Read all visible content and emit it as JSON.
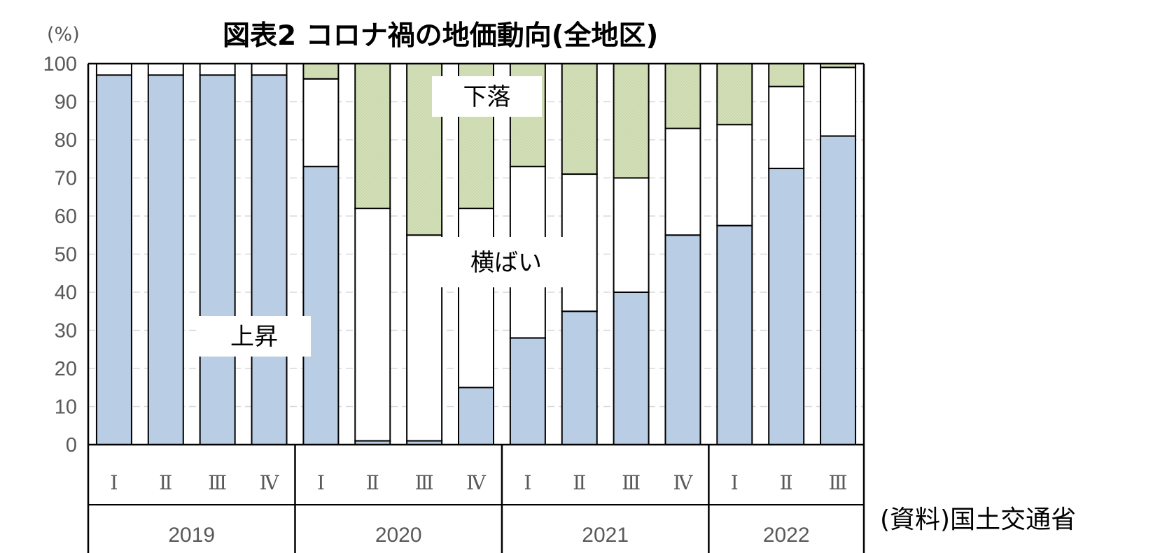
{
  "chart_data": {
    "type": "bar",
    "stacked": true,
    "title": "図表2 コロナ禍の地価動向(全地区)",
    "y_unit": "(%)",
    "ylim": [
      0,
      100
    ],
    "yticks": [
      0,
      10,
      20,
      30,
      40,
      50,
      60,
      70,
      80,
      90,
      100
    ],
    "grid": true,
    "categories": [
      "Ⅰ",
      "Ⅱ",
      "Ⅲ",
      "Ⅳ",
      "Ⅰ",
      "Ⅱ",
      "Ⅲ",
      "Ⅳ",
      "Ⅰ",
      "Ⅱ",
      "Ⅲ",
      "Ⅳ",
      "Ⅰ",
      "Ⅱ",
      "Ⅲ"
    ],
    "year_groups": [
      {
        "label": "2019",
        "count": 4
      },
      {
        "label": "2020",
        "count": 4
      },
      {
        "label": "2021",
        "count": 4
      },
      {
        "label": "2022",
        "count": 3
      }
    ],
    "series": [
      {
        "name": "上昇",
        "color": "#b9cde4",
        "values": [
          97,
          97,
          97,
          97,
          73,
          1,
          1,
          15,
          28,
          35,
          40,
          55,
          57.5,
          72.5,
          81
        ]
      },
      {
        "name": "横ばい",
        "color": "#ffffff",
        "values": [
          3,
          3,
          3,
          3,
          23,
          61,
          54,
          47,
          45,
          36,
          30,
          28,
          26.5,
          21.5,
          18
        ]
      },
      {
        "name": "下落",
        "color": "#d4e0b8",
        "values": [
          0,
          0,
          0,
          0,
          4,
          38,
          45,
          38,
          27,
          29,
          30,
          17,
          16,
          6,
          1
        ]
      }
    ],
    "annotations": [
      "上昇",
      "横ばい",
      "下落"
    ],
    "source": "(資料)国土交通省"
  }
}
